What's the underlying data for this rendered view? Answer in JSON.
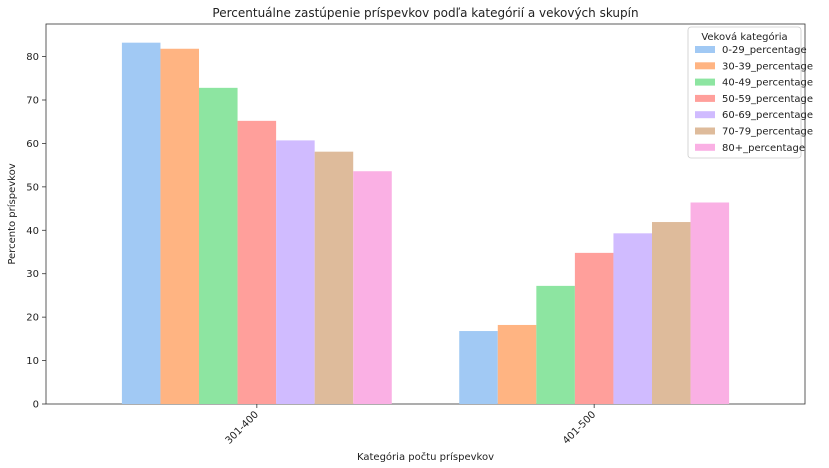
{
  "chart_data": {
    "type": "bar",
    "title": "Percentuálne zastúpenie príspevkov podľa kategórií a vekových skupín",
    "xlabel": "Kategória počtu príspevkov",
    "ylabel": "Percento príspevkov",
    "categories": [
      "301-400",
      "401-500"
    ],
    "ylim": [
      0,
      87.5
    ],
    "yticks": [
      0,
      10,
      20,
      30,
      40,
      50,
      60,
      70,
      80
    ],
    "grid": false,
    "legend": {
      "title": "Veková kategória",
      "placement": "top-right"
    },
    "series": [
      {
        "name": "0-29_percentage",
        "color": "#a1c9f4",
        "values": [
          83.2,
          16.8
        ]
      },
      {
        "name": "30-39_percentage",
        "color": "#ffb482",
        "values": [
          81.8,
          18.2
        ]
      },
      {
        "name": "40-49_percentage",
        "color": "#8de5a1",
        "values": [
          72.8,
          27.2
        ]
      },
      {
        "name": "50-59_percentage",
        "color": "#ff9f9b",
        "values": [
          65.2,
          34.8
        ]
      },
      {
        "name": "60-69_percentage",
        "color": "#d0bbff",
        "values": [
          60.7,
          39.3
        ]
      },
      {
        "name": "70-79_percentage",
        "color": "#debb9b",
        "values": [
          58.1,
          41.9
        ]
      },
      {
        "name": "80+_percentage",
        "color": "#fab0e4",
        "values": [
          53.6,
          46.4
        ]
      }
    ]
  }
}
